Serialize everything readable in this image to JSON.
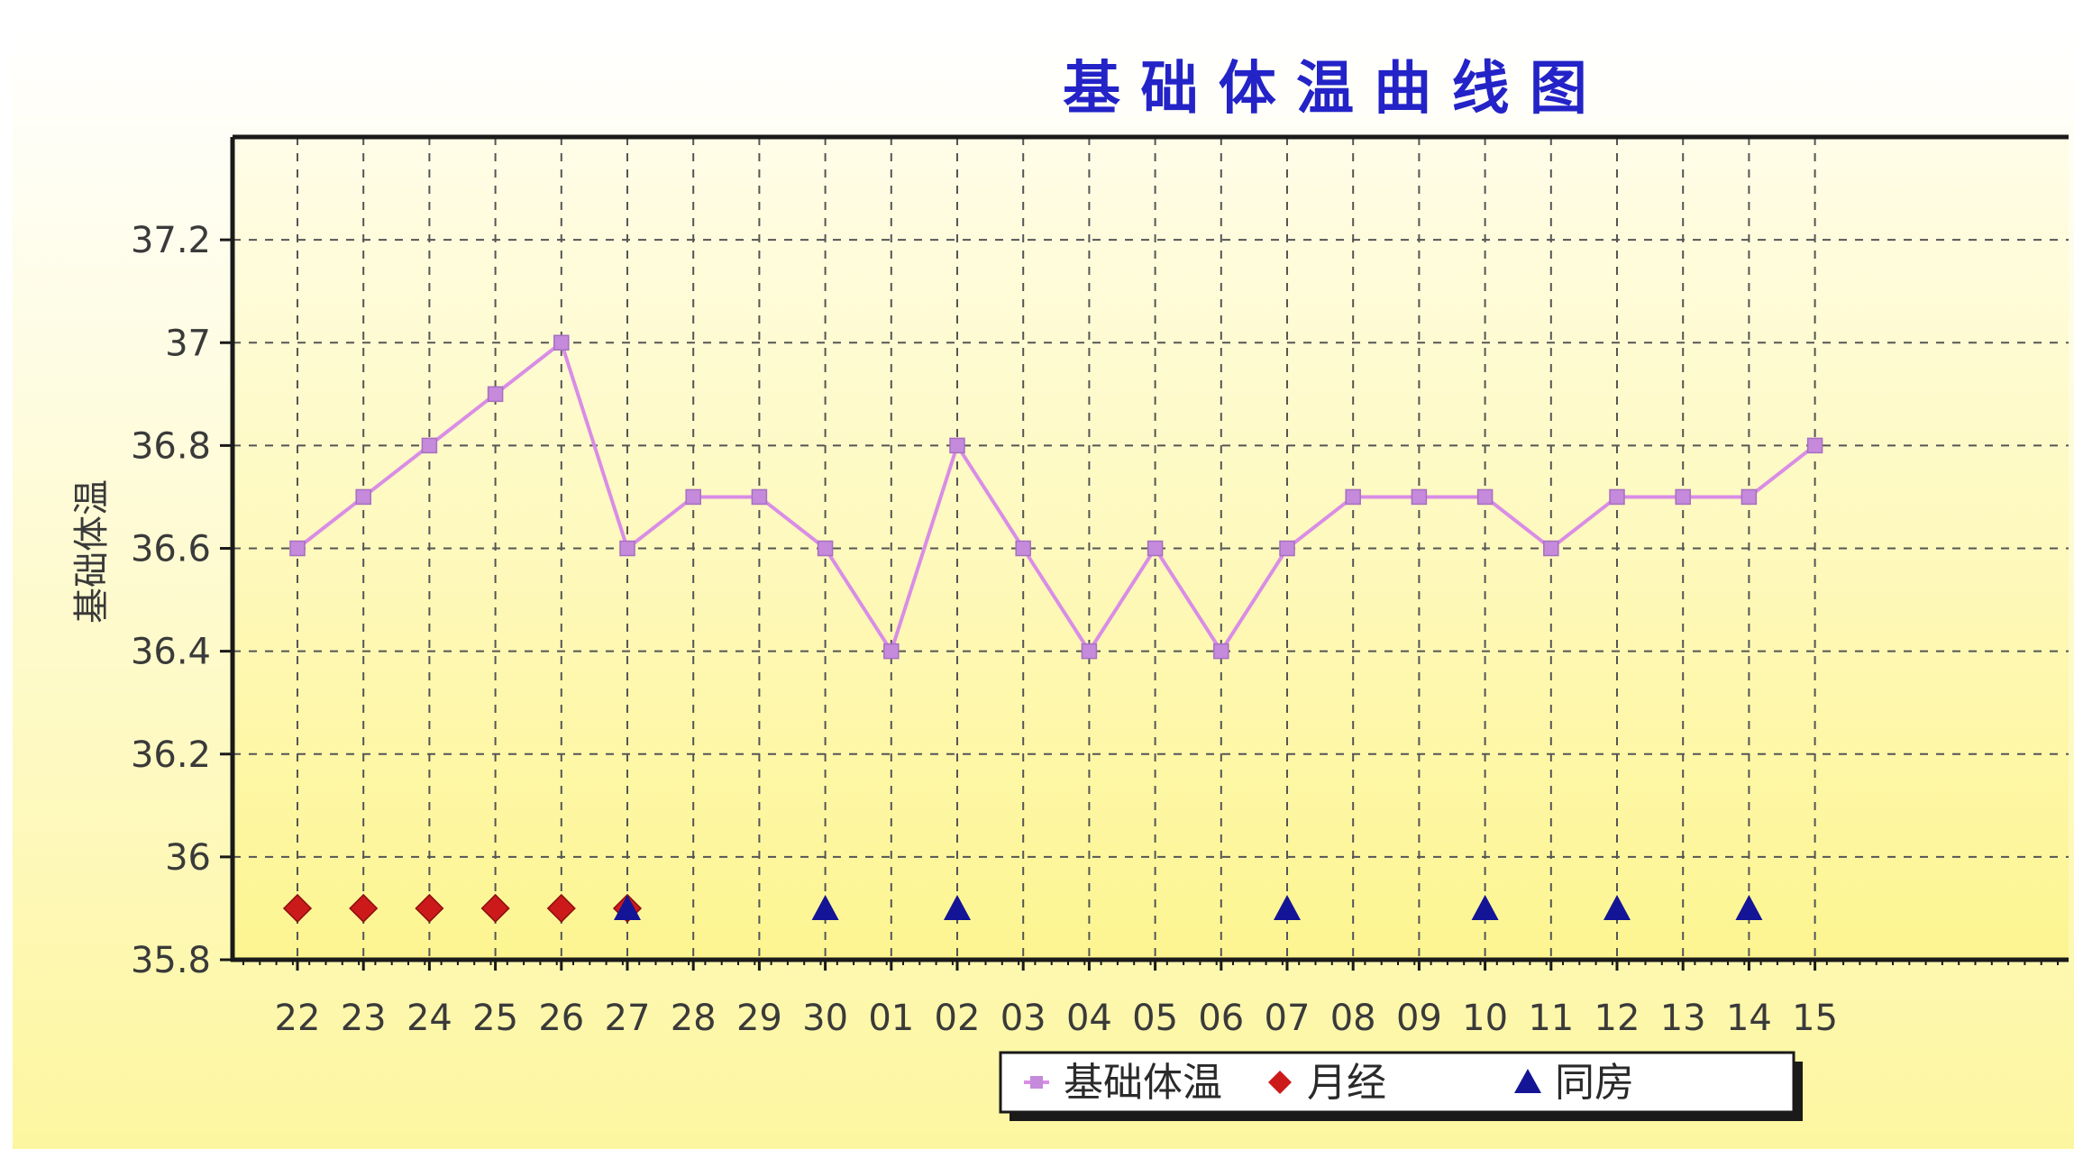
{
  "chart_data": {
    "type": "line",
    "title": "基 础 体 温 曲 线 图",
    "ylabel": "基础体温",
    "xlabel": "",
    "ylim": [
      35.8,
      37.4
    ],
    "yticks": [
      35.8,
      36,
      36.2,
      36.4,
      36.6,
      36.8,
      37,
      37.2
    ],
    "ytick_labels": [
      "35.8",
      "36",
      "36.2",
      "36.4",
      "36.6",
      "36.8",
      "37",
      "37.2"
    ],
    "grid": true,
    "categories": [
      "22",
      "23",
      "24",
      "25",
      "26",
      "27",
      "28",
      "29",
      "30",
      "01",
      "02",
      "03",
      "04",
      "05",
      "06",
      "07",
      "08",
      "09",
      "10",
      "11",
      "12",
      "13",
      "14",
      "15"
    ],
    "series": [
      {
        "name": "基础体温",
        "marker": "square",
        "color": "#d98de6",
        "marker_color": "#c58adb",
        "values": [
          36.6,
          36.7,
          36.8,
          36.9,
          37.0,
          36.6,
          36.7,
          36.7,
          36.6,
          36.4,
          36.8,
          36.6,
          36.4,
          36.6,
          36.4,
          36.6,
          36.7,
          36.7,
          36.7,
          36.6,
          36.7,
          36.7,
          36.7,
          36.8
        ]
      },
      {
        "name": "月经",
        "marker": "diamond",
        "color": "#cc1a1a",
        "points": [
          {
            "x": "22",
            "y": 35.9
          },
          {
            "x": "23",
            "y": 35.9
          },
          {
            "x": "24",
            "y": 35.9
          },
          {
            "x": "25",
            "y": 35.9
          },
          {
            "x": "26",
            "y": 35.9
          },
          {
            "x": "27",
            "y": 35.9
          }
        ]
      },
      {
        "name": "同房",
        "marker": "triangle",
        "color": "#141496",
        "points": [
          {
            "x": "27",
            "y": 35.9
          },
          {
            "x": "30",
            "y": 35.9
          },
          {
            "x": "02",
            "y": 35.9
          },
          {
            "x": "07",
            "y": 35.9
          },
          {
            "x": "10",
            "y": 35.9
          },
          {
            "x": "12",
            "y": 35.9
          },
          {
            "x": "14",
            "y": 35.9
          }
        ]
      }
    ],
    "legend": {
      "position": "bottom-center",
      "entries": [
        "基础体温",
        "月经",
        "同房"
      ]
    },
    "colors": {
      "background_top": "#ffffff",
      "background_bottom": "#fdf6a0",
      "plot_top": "#fffde8",
      "plot_bottom": "#fdf591",
      "axis": "#1a1a1a",
      "grid": "#555555",
      "title": "#2323c8"
    }
  }
}
